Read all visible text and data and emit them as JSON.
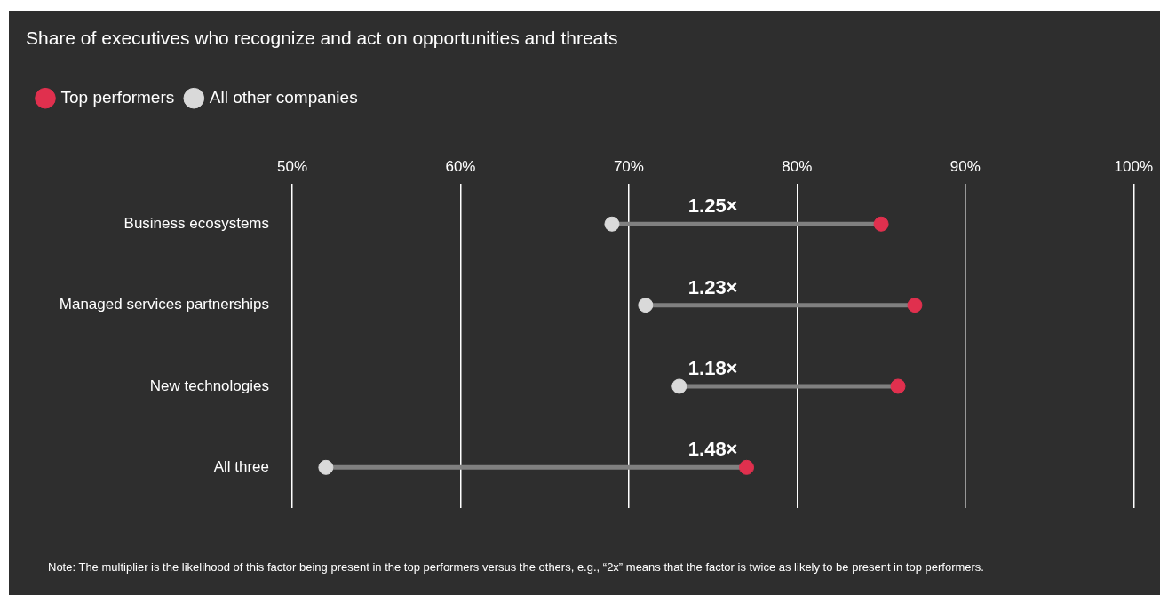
{
  "chart_data": {
    "type": "scatter",
    "orientation": "horizontal",
    "title": "Share of executives who recognize and act on opportunities and threats",
    "categories": [
      "Business ecosystems",
      "Managed services partnerships",
      "New technologies",
      "All three"
    ],
    "series": [
      {
        "name": "Top performers",
        "color": "#e0304e",
        "values": [
          85,
          87,
          86,
          77
        ]
      },
      {
        "name": "All other companies",
        "color": "#d9d9d9",
        "values": [
          69,
          71,
          73,
          52
        ]
      }
    ],
    "xlim": [
      50,
      100
    ],
    "xticks": [
      {
        "value": 50,
        "label": "50%"
      },
      {
        "value": 60,
        "label": "60%"
      },
      {
        "value": 70,
        "label": "70%"
      },
      {
        "value": 80,
        "label": "80%"
      },
      {
        "value": 90,
        "label": "90%"
      },
      {
        "value": 100,
        "label": "100%"
      }
    ],
    "grid": "x",
    "legend": "top left",
    "marker": "circle",
    "annotations": [
      "1.25×",
      "1.23×",
      "1.18×",
      "1.48×",
      "Note: The multiplier is the likelihood of this factor being present in the top performers versus the others, e.g., “2x” means that the factor is twice as likely to be present in top performers."
    ]
  }
}
